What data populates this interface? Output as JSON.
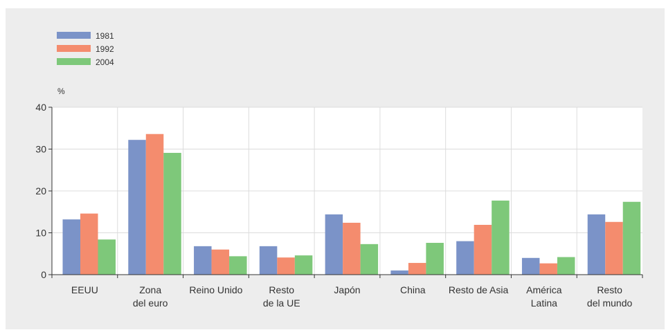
{
  "chart_data": {
    "type": "bar",
    "unit_label": "%",
    "ylim": [
      0,
      40
    ],
    "yticks": [
      0,
      10,
      20,
      30,
      40
    ],
    "grid": true,
    "legend_position": "top-left",
    "categories": [
      [
        "EEUU"
      ],
      [
        "Zona",
        "del euro"
      ],
      [
        "Reino Unido"
      ],
      [
        "Resto",
        "de la UE"
      ],
      [
        "Japón"
      ],
      [
        "China"
      ],
      [
        "Resto de Asia"
      ],
      [
        "América",
        "Latina"
      ],
      [
        "Resto",
        "del mundo"
      ]
    ],
    "series": [
      {
        "name": "1981",
        "color": "#7b93c8",
        "values": [
          13.2,
          32.2,
          6.8,
          6.8,
          14.4,
          1.0,
          8.0,
          4.0,
          14.4
        ]
      },
      {
        "name": "1992",
        "color": "#f48c6e",
        "values": [
          14.6,
          33.6,
          6.0,
          4.1,
          12.4,
          2.8,
          11.9,
          2.7,
          12.6
        ]
      },
      {
        "name": "2004",
        "color": "#7ec87a",
        "values": [
          8.4,
          29.1,
          4.4,
          4.6,
          7.3,
          7.6,
          17.7,
          4.2,
          17.4
        ]
      }
    ]
  }
}
